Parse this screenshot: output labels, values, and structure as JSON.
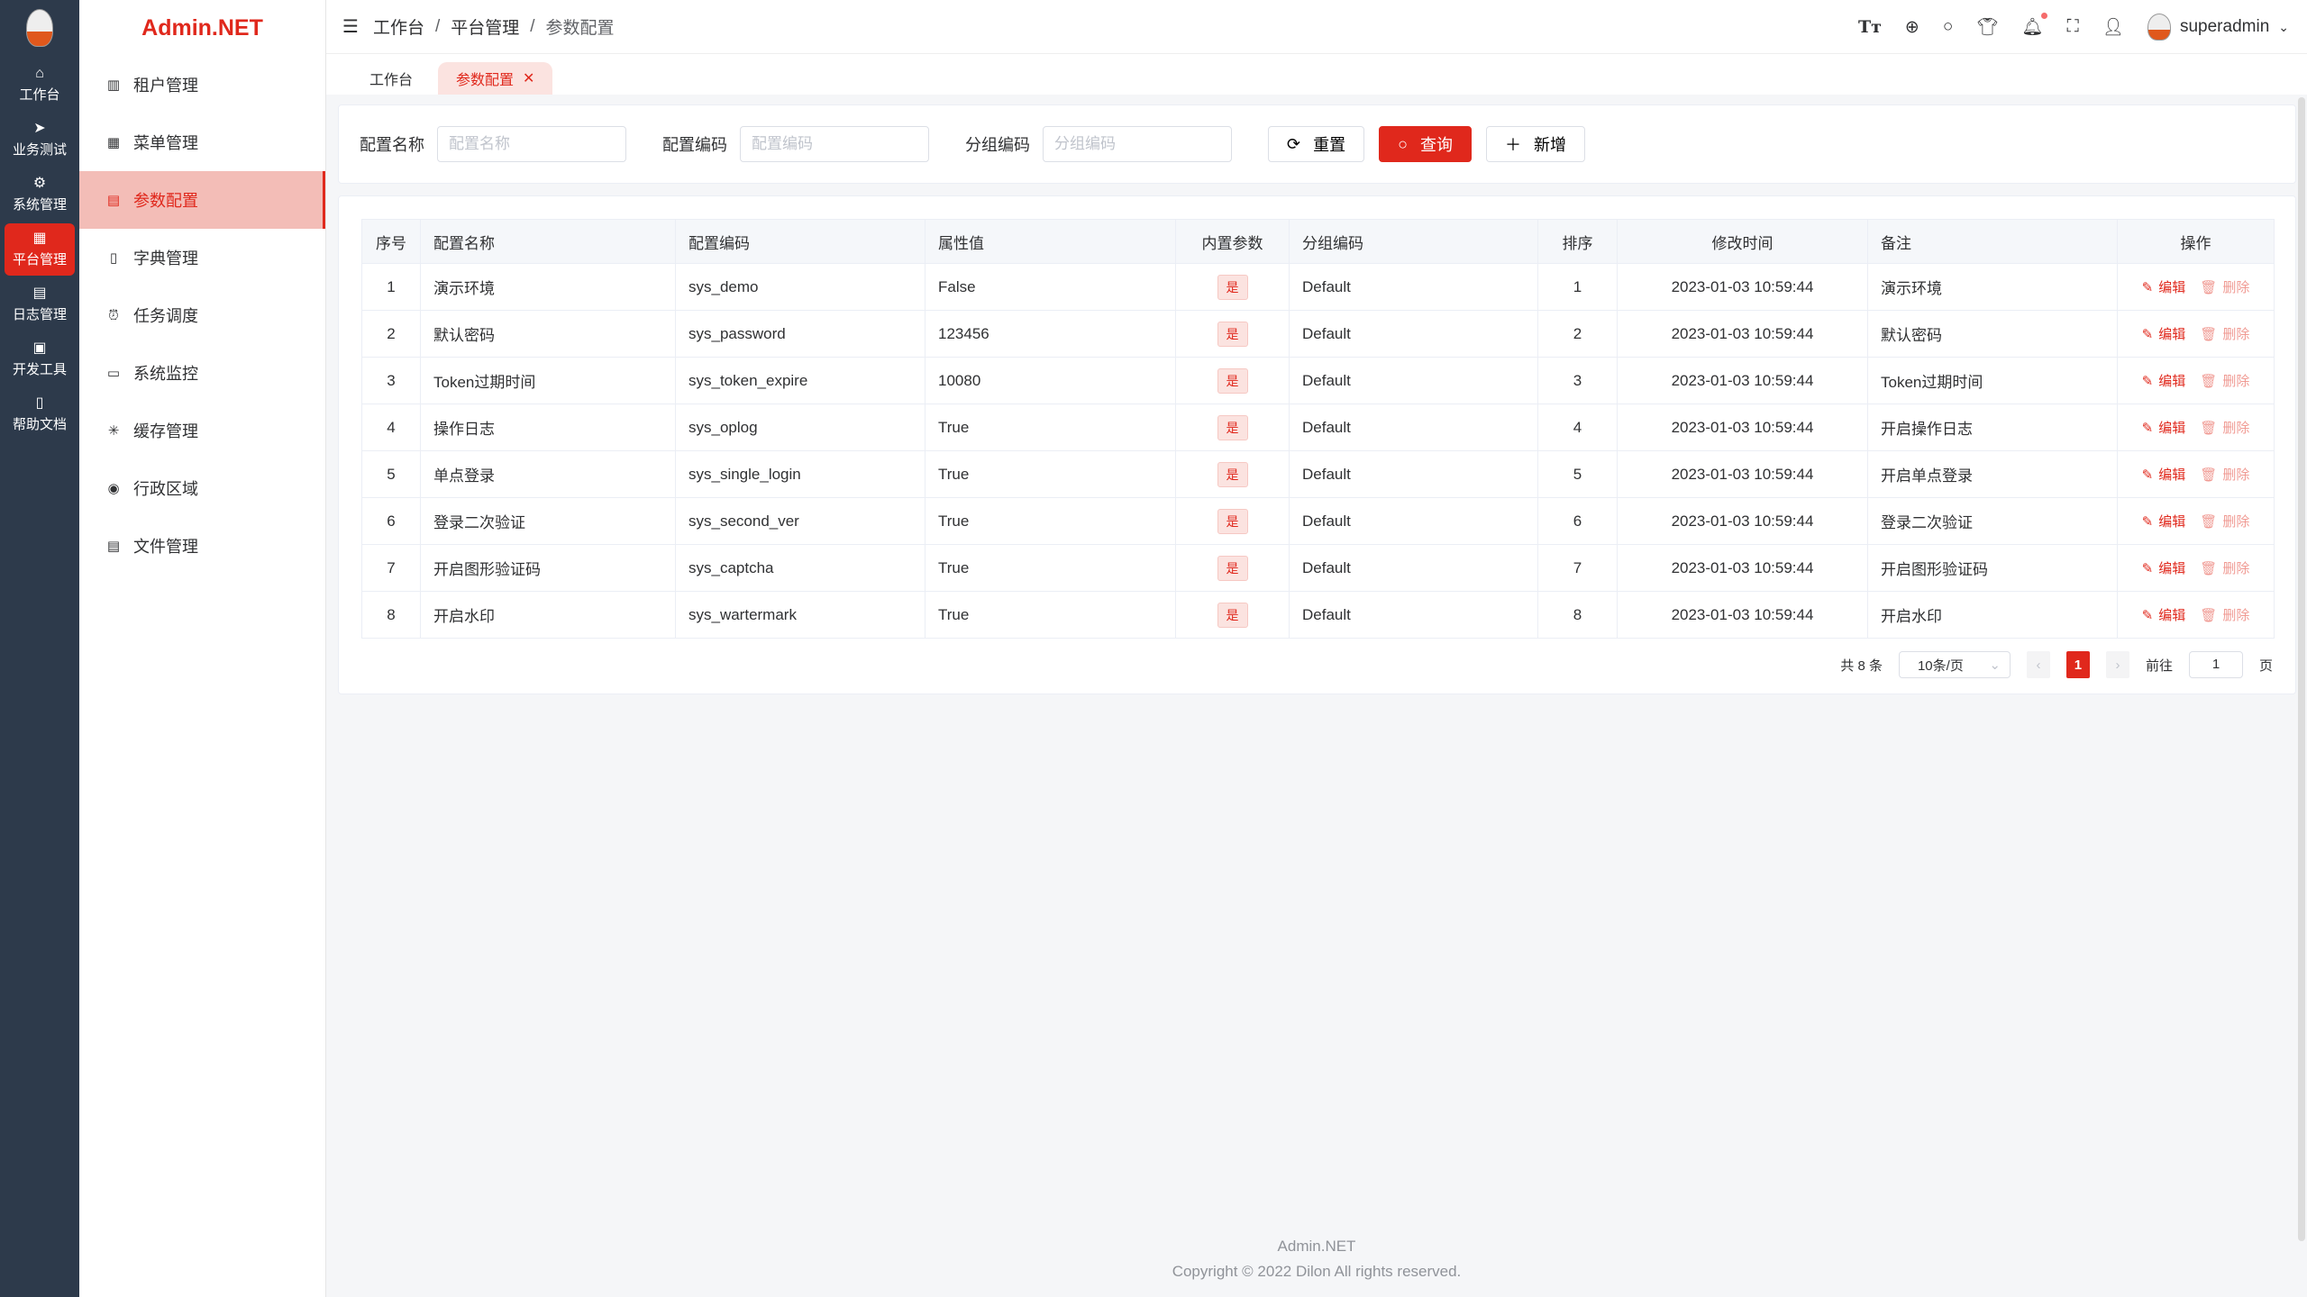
{
  "brand": "Admin.NET",
  "rail": [
    {
      "label": "工作台",
      "icon": "home-icon"
    },
    {
      "label": "业务测试",
      "icon": "send-icon"
    },
    {
      "label": "系统管理",
      "icon": "gear-icon"
    },
    {
      "label": "平台管理",
      "icon": "grid-icon",
      "active": true
    },
    {
      "label": "日志管理",
      "icon": "document-icon"
    },
    {
      "label": "开发工具",
      "icon": "chip-icon"
    },
    {
      "label": "帮助文档",
      "icon": "book-icon"
    }
  ],
  "menu": [
    {
      "label": "租户管理",
      "icon": "building-icon"
    },
    {
      "label": "菜单管理",
      "icon": "grid-icon"
    },
    {
      "label": "参数配置",
      "icon": "document-icon",
      "active": true
    },
    {
      "label": "字典管理",
      "icon": "book-icon"
    },
    {
      "label": "任务调度",
      "icon": "alarm-icon"
    },
    {
      "label": "系统监控",
      "icon": "monitor-icon"
    },
    {
      "label": "缓存管理",
      "icon": "loading-icon"
    },
    {
      "label": "行政区域",
      "icon": "location-icon"
    },
    {
      "label": "文件管理",
      "icon": "file-icon"
    }
  ],
  "breadcrumb": [
    "工作台",
    "平台管理",
    "参数配置"
  ],
  "user": "superadmin",
  "tabs": [
    "工作台",
    "参数配置"
  ],
  "search": {
    "fields": [
      {
        "label": "配置名称",
        "placeholder": "配置名称"
      },
      {
        "label": "配置编码",
        "placeholder": "配置编码"
      },
      {
        "label": "分组编码",
        "placeholder": "分组编码"
      }
    ],
    "reset": "重置",
    "query": "查询",
    "add": "新增"
  },
  "table": {
    "columns": [
      "序号",
      "配置名称",
      "配置编码",
      "属性值",
      "内置参数",
      "分组编码",
      "排序",
      "修改时间",
      "备注",
      "操作"
    ],
    "rows": [
      [
        "1",
        "演示环境",
        "sys_demo",
        "False",
        "是",
        "Default",
        "1",
        "2023-01-03 10:59:44",
        "演示环境"
      ],
      [
        "2",
        "默认密码",
        "sys_password",
        "123456",
        "是",
        "Default",
        "2",
        "2023-01-03 10:59:44",
        "默认密码"
      ],
      [
        "3",
        "Token过期时间",
        "sys_token_expire",
        "10080",
        "是",
        "Default",
        "3",
        "2023-01-03 10:59:44",
        "Token过期时间"
      ],
      [
        "4",
        "操作日志",
        "sys_oplog",
        "True",
        "是",
        "Default",
        "4",
        "2023-01-03 10:59:44",
        "开启操作日志"
      ],
      [
        "5",
        "单点登录",
        "sys_single_login",
        "True",
        "是",
        "Default",
        "5",
        "2023-01-03 10:59:44",
        "开启单点登录"
      ],
      [
        "6",
        "登录二次验证",
        "sys_second_ver",
        "True",
        "是",
        "Default",
        "6",
        "2023-01-03 10:59:44",
        "登录二次验证"
      ],
      [
        "7",
        "开启图形验证码",
        "sys_captcha",
        "True",
        "是",
        "Default",
        "7",
        "2023-01-03 10:59:44",
        "开启图形验证码"
      ],
      [
        "8",
        "开启水印",
        "sys_wartermark",
        "True",
        "是",
        "Default",
        "8",
        "2023-01-03 10:59:44",
        "开启水印"
      ]
    ],
    "edit": "编辑",
    "delete": "删除"
  },
  "pager": {
    "total": "共 8 条",
    "size": "10条/页",
    "current": "1",
    "goto": "前往",
    "goto_value": "1",
    "page": "页"
  },
  "footer": {
    "name": "Admin.NET",
    "copyright": "Copyright © 2022 Dilon All rights reserved."
  },
  "watermark": "Admin.NET",
  "colors": {
    "accent": "#e0281c",
    "rail": "#2d3a4b"
  }
}
